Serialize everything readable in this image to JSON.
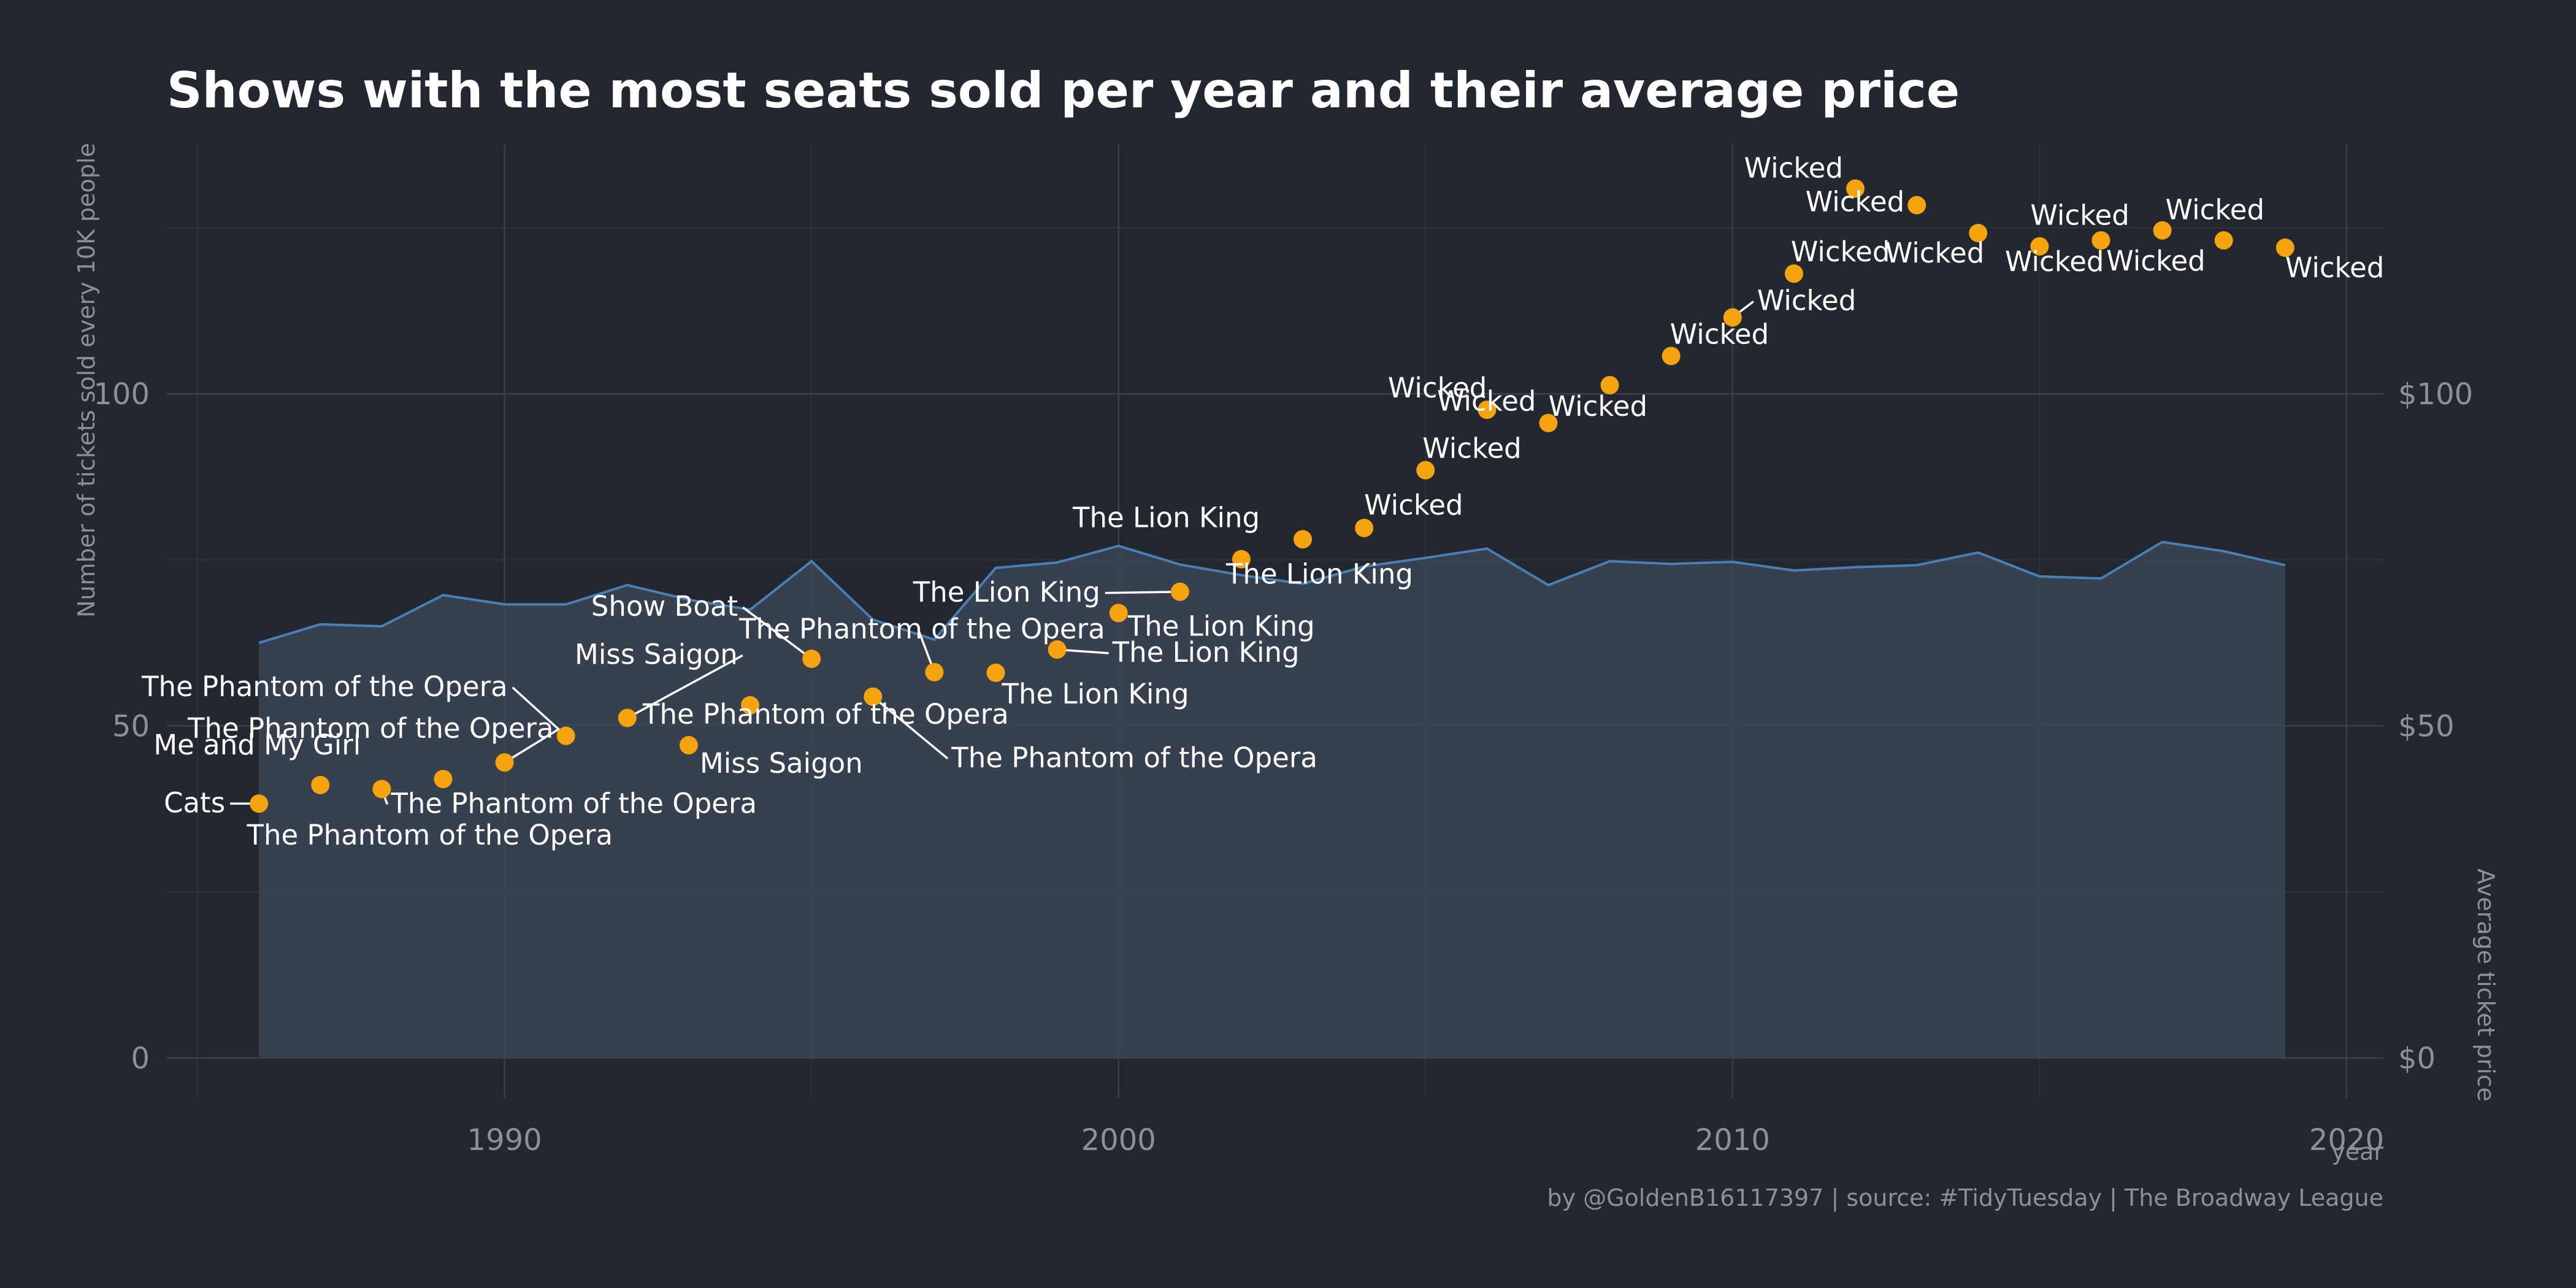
{
  "title": "Shows with the most seats sold per year and their average price",
  "caption": "by @GoldenB16117397 | source: #TidyTuesday | The Broadway League",
  "colors": {
    "background": "#232730",
    "area_fill": "#3a4553",
    "area_line": "#4a7fb5",
    "point": "#f5a30f",
    "text": "#ffffff"
  },
  "chart_data": {
    "type": "line",
    "title": "Shows with the most seats sold per year and their average price",
    "xlabel": "year",
    "ylabel": "Number of tickets sold every 10K people",
    "y2label": "Average ticket price",
    "xlim": [
      1984.5,
      2020.6
    ],
    "ylim": [
      -6,
      137.5
    ],
    "x_ticks": [
      1990,
      2000,
      2010,
      2020
    ],
    "y_ticks": [
      0,
      50,
      100
    ],
    "y2_ticks": [
      "$0",
      "$50",
      "$100"
    ],
    "grid": true,
    "series": [
      {
        "name": "Number of tickets sold every 10K people",
        "type": "area",
        "x": [
          1986,
          1987,
          1988,
          1989,
          1990,
          1991,
          1992,
          1993,
          1994,
          1995,
          1996,
          1997,
          1998,
          1999,
          2000,
          2001,
          2002,
          2003,
          2004,
          2005,
          2006,
          2007,
          2008,
          2009,
          2010,
          2011,
          2012,
          2013,
          2014,
          2015,
          2016,
          2017,
          2018,
          2019
        ],
        "values": [
          62.5,
          65.3,
          65.0,
          69.7,
          68.3,
          68.3,
          71.2,
          69.0,
          67.5,
          74.8,
          66.0,
          63.0,
          73.8,
          74.6,
          77.1,
          74.3,
          72.7,
          71.4,
          74.0,
          75.3,
          76.7,
          71.2,
          74.8,
          74.4,
          74.7,
          73.4,
          73.9,
          74.2,
          76.1,
          72.5,
          72.2,
          77.7,
          76.3,
          74.2
        ]
      },
      {
        "name": "Average ticket price",
        "type": "scatter",
        "x": [
          1986,
          1987,
          1988,
          1989,
          1990,
          1991,
          1992,
          1993,
          1994,
          1995,
          1996,
          1997,
          1998,
          1999,
          2000,
          2001,
          2002,
          2003,
          2004,
          2005,
          2006,
          2007,
          2008,
          2009,
          2010,
          2011,
          2012,
          2013,
          2014,
          2015,
          2016,
          2017,
          2018,
          2019
        ],
        "values": [
          38.3,
          41.1,
          40.5,
          42.0,
          44.5,
          48.5,
          51.2,
          47.1,
          53.1,
          60.1,
          54.4,
          58.1,
          58.0,
          61.5,
          67.0,
          70.2,
          75.1,
          78.1,
          79.8,
          88.5,
          97.6,
          95.6,
          101.3,
          105.7,
          111.5,
          118.1,
          130.9,
          128.4,
          124.2,
          122.2,
          123.1,
          124.6,
          123.1,
          122.0
        ],
        "labels": [
          "Cats",
          "Me and My Girl",
          "The Phantom of the Opera",
          "The Phantom of the Opera",
          "The Phantom of the Opera",
          "The Phantom of the Opera",
          "Miss Saigon",
          "Miss Saigon",
          "The Phantom of the Opera",
          "Show Boat",
          "The Phantom of the Opera",
          "The Phantom of the Opera",
          "The Lion King",
          "The Lion King",
          "The Lion King",
          "The Lion King",
          "The Lion King",
          "The Lion King",
          "Wicked",
          "Wicked",
          "Wicked",
          "Wicked",
          "Wicked",
          "Wicked",
          "Wicked",
          "Wicked",
          "Wicked",
          "Wicked",
          "Wicked",
          "Wicked",
          "Wicked",
          "Wicked",
          "Wicked",
          "Wicked"
        ]
      }
    ]
  }
}
